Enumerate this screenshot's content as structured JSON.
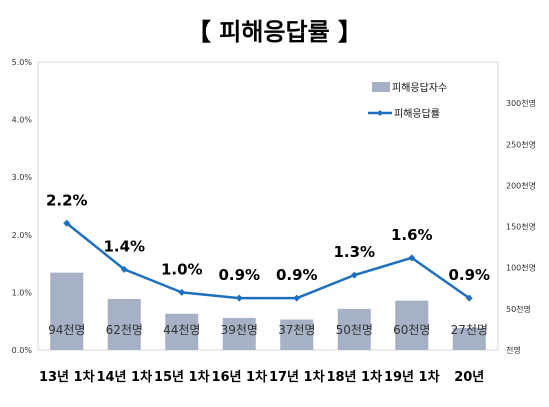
{
  "chart_data": {
    "type": "bar",
    "title": "【 피해응답률 】",
    "categories": [
      "13년 1차",
      "14년 1차",
      "15년 1차",
      "16년 1차",
      "17년 1차",
      "18년 1차",
      "19년 1차",
      "20년"
    ],
    "series": [
      {
        "name": "피해응답자수",
        "type": "bar",
        "axis": "right",
        "values": [
          94,
          62,
          44,
          39,
          37,
          50,
          60,
          27
        ],
        "labels": [
          "94천명",
          "62천명",
          "44천명",
          "39천명",
          "37천명",
          "50천명",
          "60천명",
          "27천명"
        ],
        "color": "#a6b1c6"
      },
      {
        "name": "피해응답률",
        "type": "line",
        "axis": "left",
        "values": [
          2.2,
          1.4,
          1.0,
          0.9,
          0.9,
          1.3,
          1.6,
          0.9
        ],
        "labels": [
          "2.2%",
          "1.4%",
          "1.0%",
          "0.9%",
          "0.9%",
          "1.3%",
          "1.6%",
          "0.9%"
        ],
        "color": "#1f6fbf"
      }
    ],
    "y_left": {
      "min": 0,
      "max": 5,
      "step": 1,
      "tick_labels": [
        "0.0%",
        "1.0%",
        "2.0%",
        "3.0%",
        "4.0%",
        "5.0%"
      ]
    },
    "y_right": {
      "min": 0,
      "max": 350,
      "step": 50,
      "tick_labels": [
        "천명",
        "50천명",
        "100천명",
        "150천명",
        "200천명",
        "250천명",
        "300천명"
      ]
    },
    "grid": false,
    "legend_position": "top-right"
  }
}
